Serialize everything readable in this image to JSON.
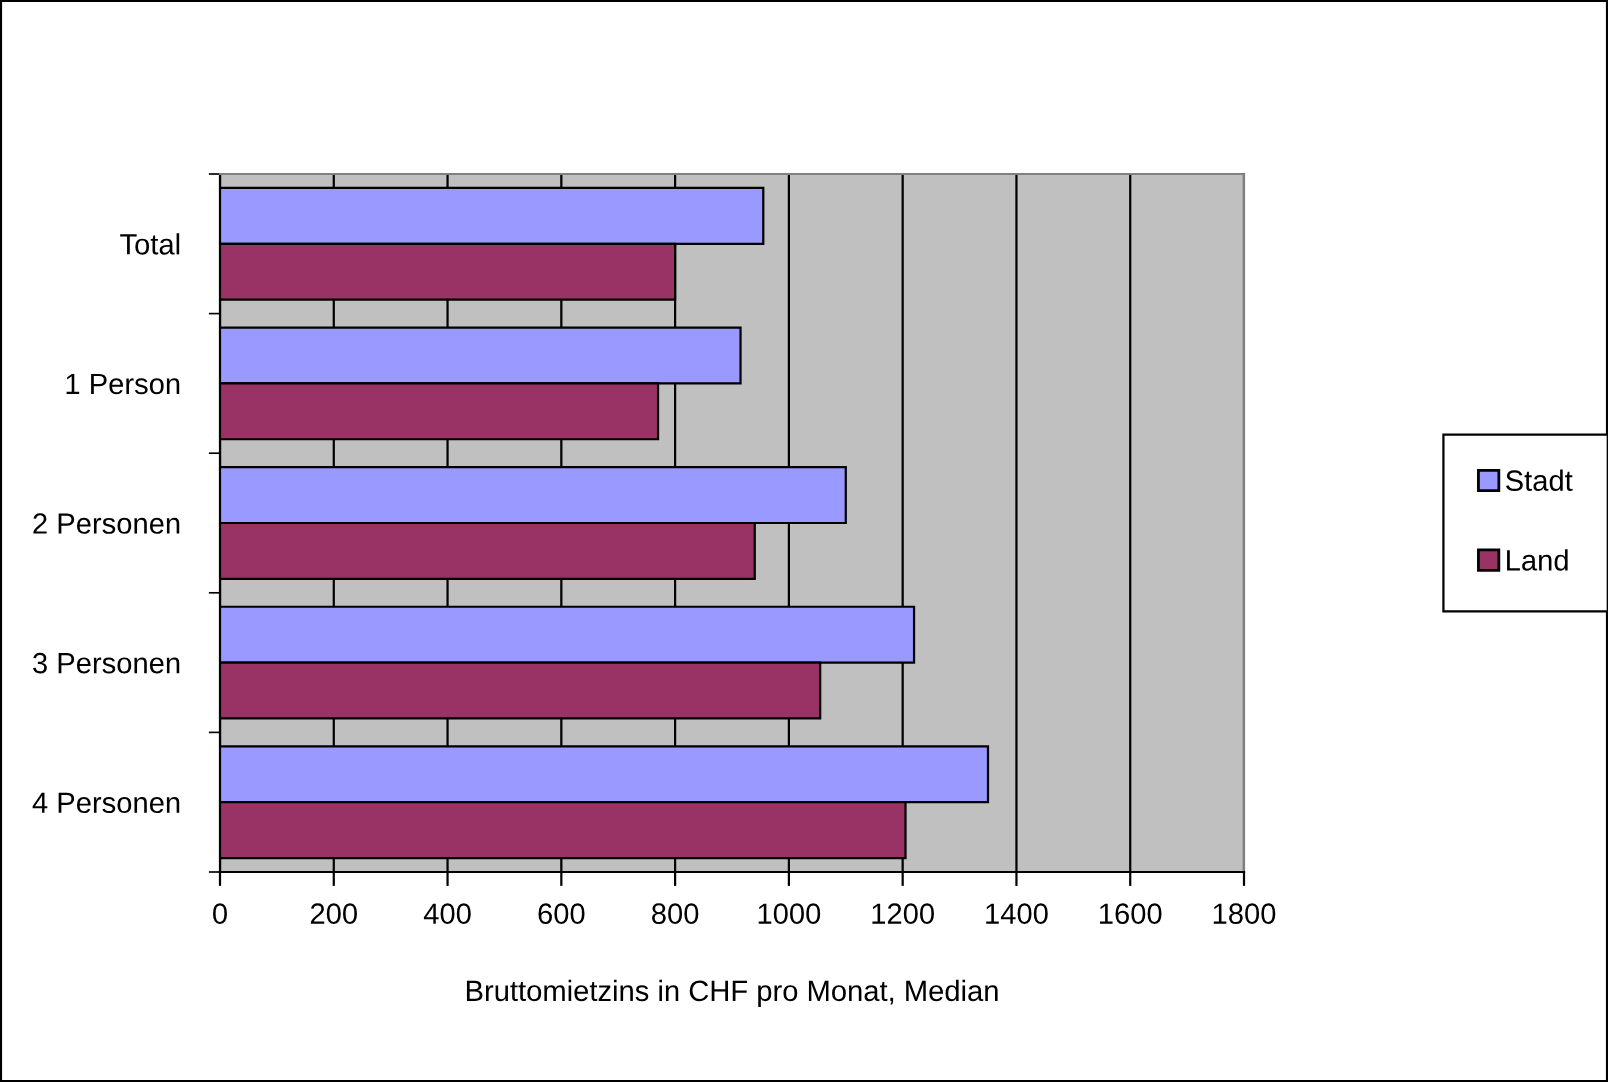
{
  "chart_data": {
    "type": "bar",
    "orientation": "horizontal",
    "xlabel": "Bruttomietzins in CHF pro Monat, Median",
    "categories": [
      "Total",
      "1 Person",
      "2 Personen",
      "3 Personen",
      "4 Personen"
    ],
    "series": [
      {
        "name": "Stadt",
        "color": "#9999ff",
        "values": [
          955,
          915,
          1100,
          1220,
          1350
        ]
      },
      {
        "name": "Land",
        "color": "#993366",
        "values": [
          800,
          770,
          940,
          1055,
          1205
        ]
      }
    ],
    "xlim": [
      0,
      1800
    ],
    "xticks": [
      0,
      200,
      400,
      600,
      800,
      1000,
      1200,
      1400,
      1600,
      1800
    ],
    "grid": "x",
    "legend": "right"
  }
}
